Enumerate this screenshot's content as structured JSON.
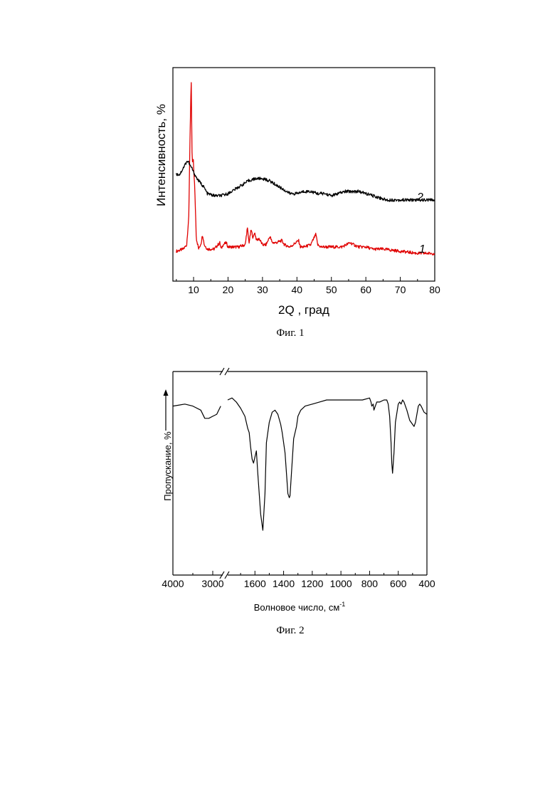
{
  "chart_data": [
    {
      "type": "line",
      "caption": "Фиг. 1",
      "xlabel": "2Q , град",
      "ylabel": "Интенсивность, %",
      "xlim": [
        4,
        80
      ],
      "ylim": [
        0,
        100
      ],
      "xticks": [
        10,
        20,
        30,
        40,
        50,
        60,
        70,
        80
      ],
      "yticks_shown": false,
      "grid": false,
      "series": [
        {
          "name": "1",
          "color": "#e00000",
          "x": [
            5,
            7,
            8,
            8.6,
            9.0,
            9.3,
            9.6,
            9.9,
            10.3,
            10.8,
            11.5,
            12.2,
            12.6,
            13.1,
            14,
            16,
            17.6,
            18.0,
            18.5,
            19.5,
            20.0,
            21,
            23,
            25,
            25.6,
            26.1,
            26.7,
            27.3,
            27.7,
            28.3,
            29,
            30,
            31,
            32.2,
            32.8,
            34,
            35.6,
            36.4,
            38,
            40.5,
            41.0,
            42,
            44,
            45.5,
            46,
            47,
            50,
            53,
            55.5,
            56.5,
            58,
            60,
            62,
            65,
            70,
            75,
            80
          ],
          "y": [
            14,
            15,
            17,
            30,
            70,
            95,
            55,
            57,
            45,
            20,
            15,
            18,
            22,
            17,
            15,
            15,
            18,
            15,
            17,
            18,
            16,
            16,
            16,
            17,
            25,
            18,
            24,
            20,
            23,
            19,
            20,
            17,
            17,
            21,
            18,
            18,
            19,
            17,
            16,
            19,
            16,
            16,
            17,
            22,
            17,
            16,
            16,
            16,
            18,
            17,
            16,
            16,
            15,
            15,
            14,
            13,
            13
          ]
        },
        {
          "name": "2",
          "color": "#000000",
          "x": [
            5,
            6,
            7,
            8,
            8.5,
            9.0,
            9.5,
            10,
            11,
            12,
            13,
            14,
            16,
            18,
            20,
            22,
            24,
            26,
            28,
            30,
            32,
            34,
            36,
            38,
            40,
            42,
            44,
            46,
            48,
            50,
            52,
            54,
            56,
            58,
            60,
            62,
            64,
            66,
            68,
            70,
            72,
            74,
            76,
            78,
            80
          ],
          "y": [
            50,
            50,
            53,
            56,
            56,
            54,
            53,
            51,
            48,
            46,
            44,
            41,
            40,
            40,
            41,
            43,
            45,
            47,
            48,
            48,
            47,
            45,
            43,
            41,
            41,
            42,
            42,
            41,
            41,
            40,
            41,
            42,
            42,
            42,
            41,
            40,
            39,
            38,
            38,
            38,
            38,
            38,
            38,
            38,
            38
          ]
        }
      ]
    },
    {
      "type": "line",
      "caption": "Фиг. 2",
      "xlabel": "Волновое число, см",
      "xlabel_sup": "-1",
      "ylabel": "Пропускание, %",
      "reversed_x": true,
      "broken_axis": true,
      "xlim": [
        4000,
        400
      ],
      "ylim": [
        0,
        100
      ],
      "xticks": [
        4000,
        3000,
        1600,
        1400,
        1200,
        1000,
        800,
        600,
        400
      ],
      "yticks_shown": false,
      "grid": false,
      "series": [
        {
          "color": "#000000",
          "segments": [
            {
              "x": [
                4000,
                3700,
                3500,
                3300,
                3200,
                3100,
                3000,
                2900,
                2800
              ],
              "y": [
                83,
                84,
                83,
                81,
                77,
                77,
                78,
                79,
                83
              ]
            },
            {
              "x": [
                1790,
                1760,
                1730,
                1700,
                1670,
                1650,
                1640,
                1630,
                1620,
                1610,
                1600,
                1590,
                1580,
                1560,
                1545,
                1530,
                1520,
                1500,
                1480,
                1460,
                1440,
                1420,
                1410,
                1400,
                1390,
                1380,
                1370,
                1360,
                1355,
                1345,
                1330,
                1310,
                1300,
                1280,
                1250,
                1200,
                1150,
                1100,
                1050,
                1000,
                950,
                900,
                850,
                800,
                790,
                785,
                775,
                770,
                760,
                750,
                730,
                700,
                680,
                670,
                660,
                650,
                645,
                640,
                630,
                620,
                600,
                590,
                580,
                570,
                560,
                540,
                520,
                500,
                490,
                480,
                470,
                460,
                450,
                440,
                420,
                400
              ],
              "y": [
                86,
                87,
                85,
                82,
                78,
                72,
                70,
                63,
                57,
                55,
                58,
                61,
                50,
                30,
                22,
                40,
                65,
                75,
                80,
                81,
                79,
                74,
                70,
                65,
                60,
                50,
                40,
                38,
                39,
                50,
                67,
                73,
                78,
                81,
                83,
                84,
                85,
                86,
                86,
                86,
                86,
                86,
                86,
                87,
                85,
                83,
                84,
                81,
                83,
                85,
                85,
                86,
                86,
                84,
                78,
                65,
                55,
                50,
                60,
                75,
                84,
                85,
                84,
                86,
                85,
                81,
                76,
                74,
                73,
                75,
                79,
                83,
                84,
                83,
                80,
                79
              ]
            }
          ]
        }
      ]
    }
  ],
  "figure1": {
    "caption": "Фиг. 1",
    "xlabel": "2Q , град",
    "ylabel": "Интенсивность, %",
    "series_labels": [
      "1",
      "2"
    ]
  },
  "figure2": {
    "caption": "Фиг. 2",
    "xlabel": "Волновое число, см",
    "xlabel_sup": "-1",
    "ylabel": "Пропускание, %"
  }
}
